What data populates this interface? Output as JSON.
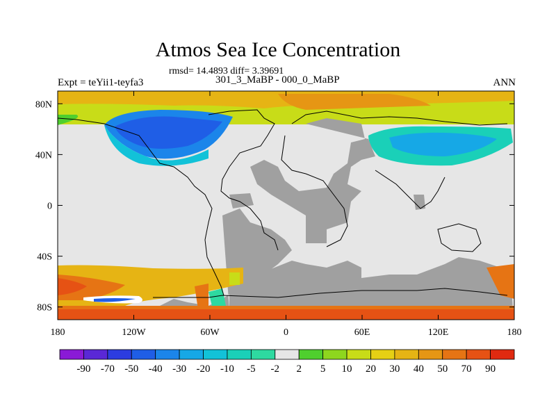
{
  "header": {
    "title": "Atmos Sea Ice Concentration",
    "stats": "rmsd= 14.4893 diff= 3.39691",
    "experiment": "Expt = teYii1-teyfa3",
    "comparison": "301_3_MaBP - 000_0_MaBP",
    "season": "ANN"
  },
  "map": {
    "lon_ticks": [
      "180",
      "120W",
      "60W",
      "0",
      "60E",
      "120E",
      "180"
    ],
    "lat_ticks": [
      "80N",
      "40N",
      "0",
      "40S",
      "80S"
    ],
    "land_color": "#e6e6e6",
    "missing_color": "#a0a0a0"
  },
  "colorbar": {
    "levels": [
      "-90",
      "-70",
      "-50",
      "-40",
      "-30",
      "-20",
      "-10",
      "-5",
      "-2",
      "2",
      "5",
      "10",
      "20",
      "30",
      "40",
      "50",
      "70",
      "90"
    ],
    "colors": [
      "#8a1ad6",
      "#5a28d6",
      "#2c3ce0",
      "#1f5ee6",
      "#1b85ea",
      "#16a8e6",
      "#12c2d8",
      "#1ad0b8",
      "#2ed9a0",
      "#e6e6e6",
      "#4fcf2e",
      "#8ed61e",
      "#c8dc18",
      "#e6d014",
      "#e6b414",
      "#e69614",
      "#e67414",
      "#e65214",
      "#e02a10"
    ]
  }
}
